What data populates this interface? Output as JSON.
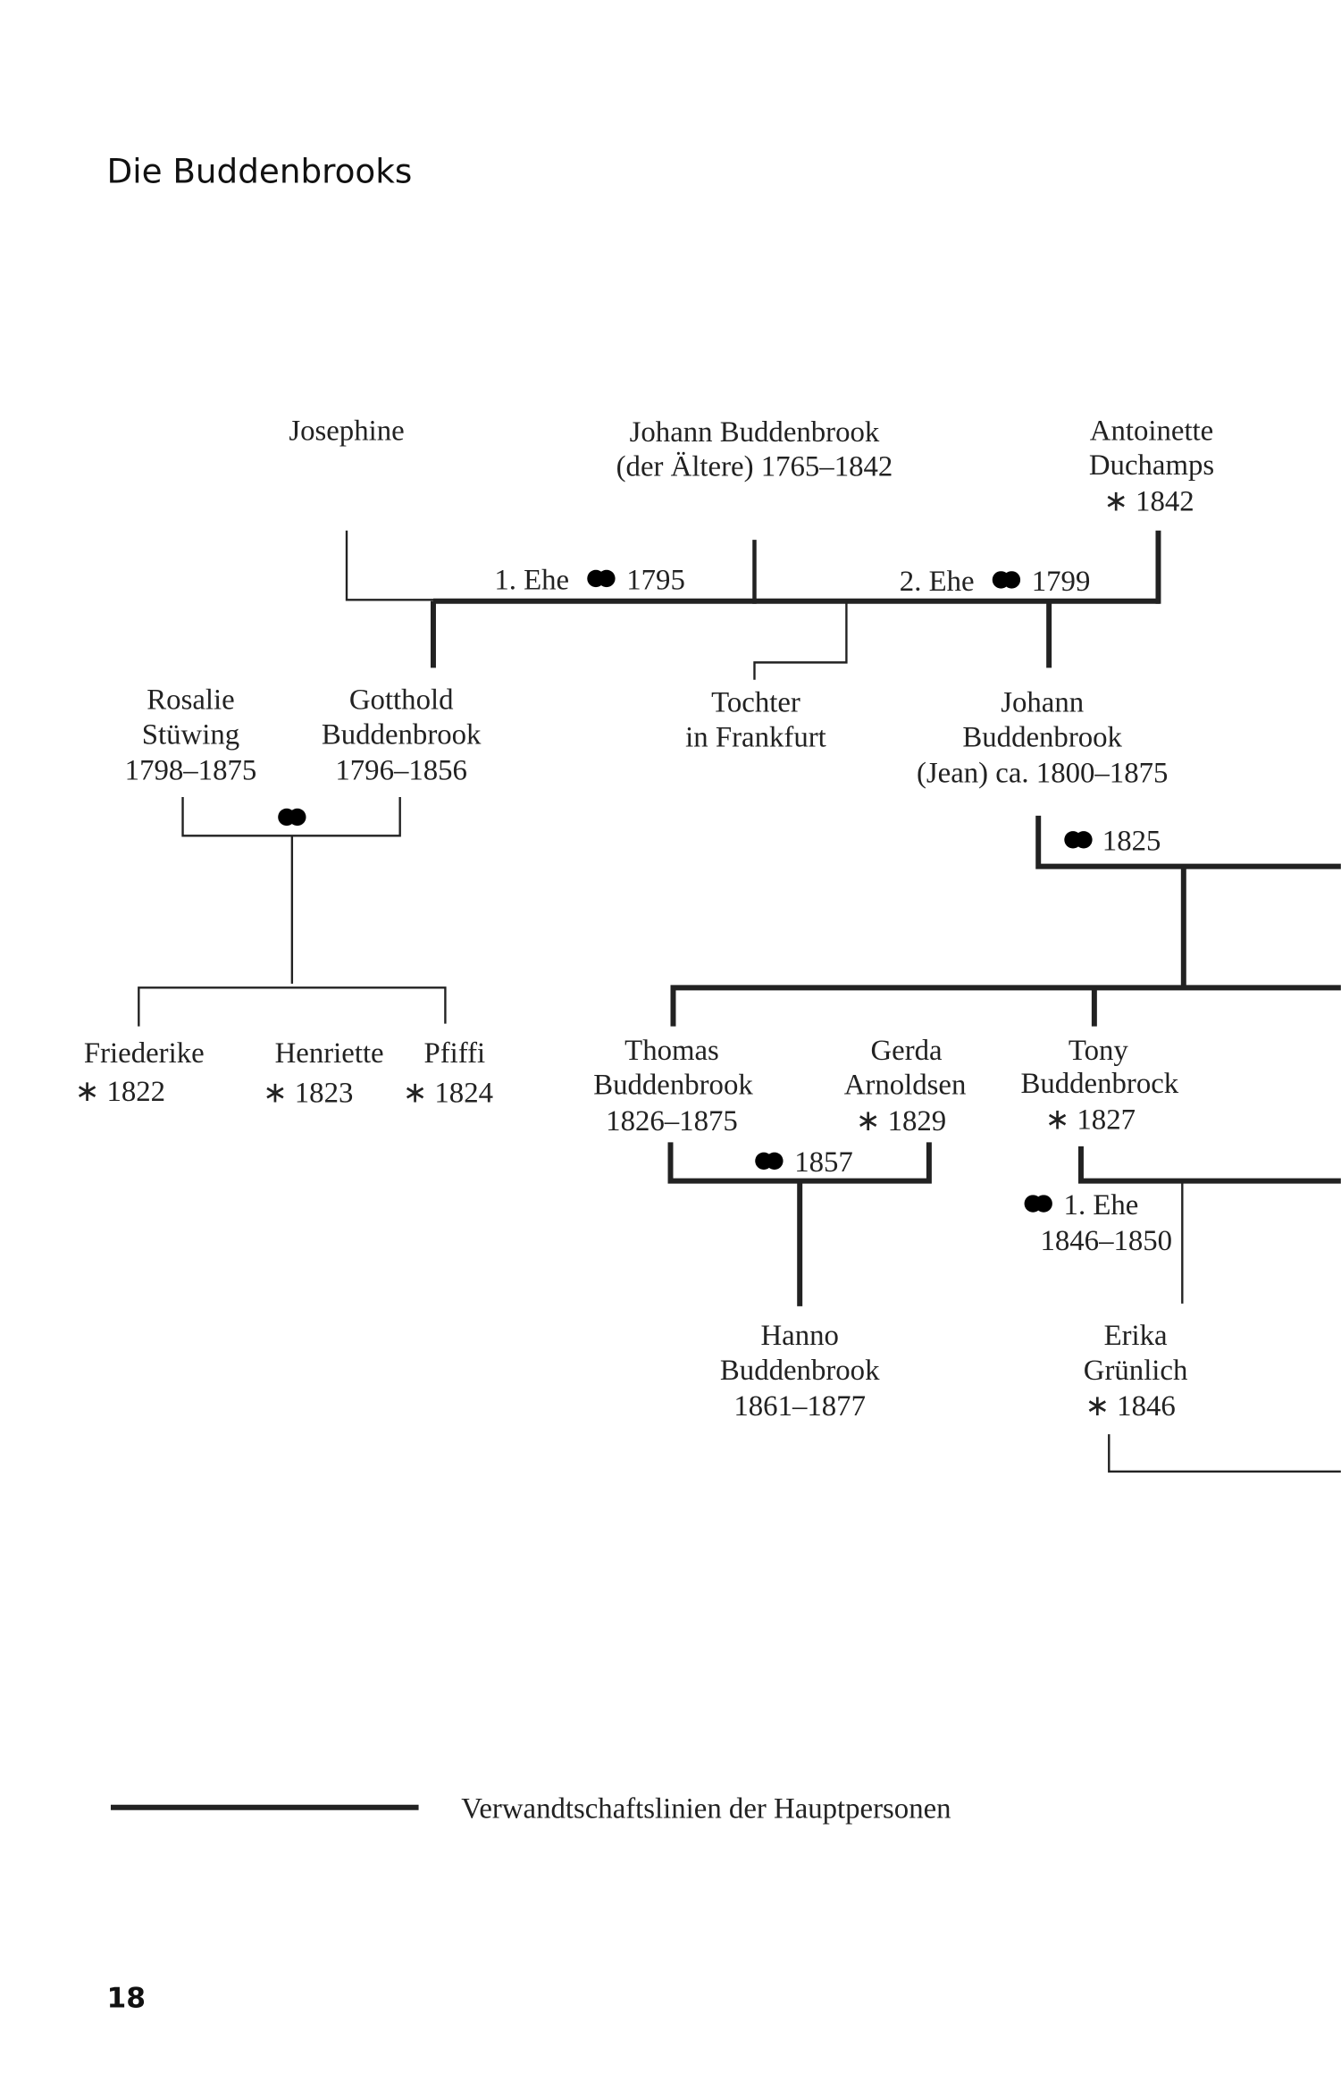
{
  "title": "Die Buddenbrooks",
  "page_number": "18",
  "legend": {
    "label": "Verwandtschaftslinien der Hauptpersonen"
  },
  "icons": {
    "marriage": "wedding-rings-icon"
  },
  "people": {
    "josephine": {
      "lines": [
        "Josephine"
      ]
    },
    "johann_aeltere": {
      "lines": [
        "Johann Buddenbrook",
        "(der Ältere)  1765–1842"
      ]
    },
    "antoinette": {
      "lines": [
        "Antoinette",
        "Duchamps",
        "∗ 1842"
      ]
    },
    "rosalie": {
      "lines": [
        "Rosalie",
        "Stüwing",
        "1798–1875"
      ]
    },
    "gotthold": {
      "lines": [
        "Gotthold",
        "Buddenbrook",
        "1796–1856"
      ]
    },
    "tochter": {
      "lines": [
        "Tochter",
        "in Frankfurt"
      ]
    },
    "jean": {
      "lines": [
        "Johann",
        "Buddenbrook",
        "(Jean) ca. 1800–1875"
      ]
    },
    "friederike": {
      "lines": [
        "Friederike",
        "∗ 1822"
      ]
    },
    "henriette": {
      "lines": [
        "Henriette",
        "∗ 1823"
      ]
    },
    "pfiffi": {
      "lines": [
        "Pfiffi",
        "∗ 1824"
      ]
    },
    "thomas": {
      "lines": [
        "Thomas",
        "Buddenbrook",
        "1826–1875"
      ]
    },
    "gerda": {
      "lines": [
        "Gerda",
        "Arnoldsen",
        "∗ 1829"
      ]
    },
    "tony": {
      "lines": [
        "Tony",
        "Buddenbrock",
        "∗ 1827"
      ]
    },
    "hanno": {
      "lines": [
        "Hanno",
        "Buddenbrook",
        "1861–1877"
      ]
    },
    "erika": {
      "lines": [
        "Erika",
        "Grünlich",
        "∗ 1846"
      ]
    }
  },
  "marriages": {
    "first": {
      "label": "1. Ehe",
      "year": "1795"
    },
    "second": {
      "label": "2. Ehe",
      "year": "1799"
    },
    "jean": {
      "year": "1825"
    },
    "thomas_gerda": {
      "year": "1857"
    },
    "tony_first": {
      "label": "1. Ehe",
      "years": "1846–1850"
    }
  }
}
